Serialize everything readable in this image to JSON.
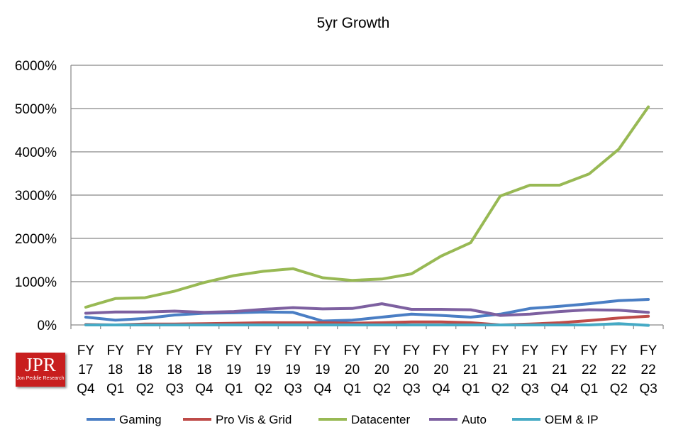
{
  "chart_data": {
    "type": "line",
    "title": "5yr Growth",
    "ylim": [
      0,
      6000
    ],
    "y_ticks": [
      "0%",
      "1000%",
      "2000%",
      "3000%",
      "4000%",
      "5000%",
      "6000%"
    ],
    "grid": true,
    "legend_position": "bottom",
    "categories": [
      [
        "FY",
        "17",
        "Q4"
      ],
      [
        "FY",
        "18",
        "Q1"
      ],
      [
        "FY",
        "18",
        "Q2"
      ],
      [
        "FY",
        "18",
        "Q3"
      ],
      [
        "FY",
        "18",
        "Q4"
      ],
      [
        "FY",
        "19",
        "Q1"
      ],
      [
        "FY",
        "19",
        "Q2"
      ],
      [
        "FY",
        "19",
        "Q3"
      ],
      [
        "FY",
        "19",
        "Q4"
      ],
      [
        "FY",
        "20",
        "Q1"
      ],
      [
        "FY",
        "20",
        "Q2"
      ],
      [
        "FY",
        "20",
        "Q3"
      ],
      [
        "FY",
        "20",
        "Q4"
      ],
      [
        "FY",
        "21",
        "Q1"
      ],
      [
        "FY",
        "21",
        "Q2"
      ],
      [
        "FY",
        "21",
        "Q3"
      ],
      [
        "FY",
        "21",
        "Q4"
      ],
      [
        "FY",
        "22",
        "Q1"
      ],
      [
        "FY",
        "22",
        "Q2"
      ],
      [
        "FY",
        "22",
        "Q3"
      ]
    ],
    "series": [
      {
        "name": "Gaming",
        "color": "#4a7ec4",
        "values": [
          180,
          110,
          150,
          230,
          270,
          280,
          300,
          290,
          90,
          110,
          180,
          250,
          220,
          180,
          250,
          380,
          430,
          490,
          560,
          590
        ]
      },
      {
        "name": "Pro Vis & Grid",
        "color": "#be4b48",
        "values": [
          10,
          0,
          20,
          20,
          30,
          40,
          50,
          50,
          50,
          40,
          50,
          70,
          70,
          50,
          0,
          20,
          50,
          100,
          160,
          200
        ]
      },
      {
        "name": "Datacenter",
        "color": "#98b954",
        "values": [
          410,
          610,
          630,
          780,
          980,
          1140,
          1240,
          1300,
          1090,
          1030,
          1060,
          1180,
          1590,
          1900,
          2980,
          3230,
          3230,
          3490,
          4060,
          5040
        ]
      },
      {
        "name": "Auto",
        "color": "#7d60a0",
        "values": [
          270,
          300,
          300,
          320,
          290,
          310,
          360,
          400,
          370,
          380,
          490,
          360,
          360,
          350,
          220,
          250,
          310,
          350,
          340,
          290
        ]
      },
      {
        "name": "OEM & IP",
        "color": "#46aac5",
        "values": [
          0,
          0,
          0,
          0,
          0,
          0,
          0,
          0,
          0,
          0,
          0,
          0,
          0,
          0,
          0,
          0,
          0,
          0,
          30,
          -10
        ]
      }
    ]
  },
  "logo": {
    "main": "JPR",
    "sub": "Jon Peddie Research"
  }
}
